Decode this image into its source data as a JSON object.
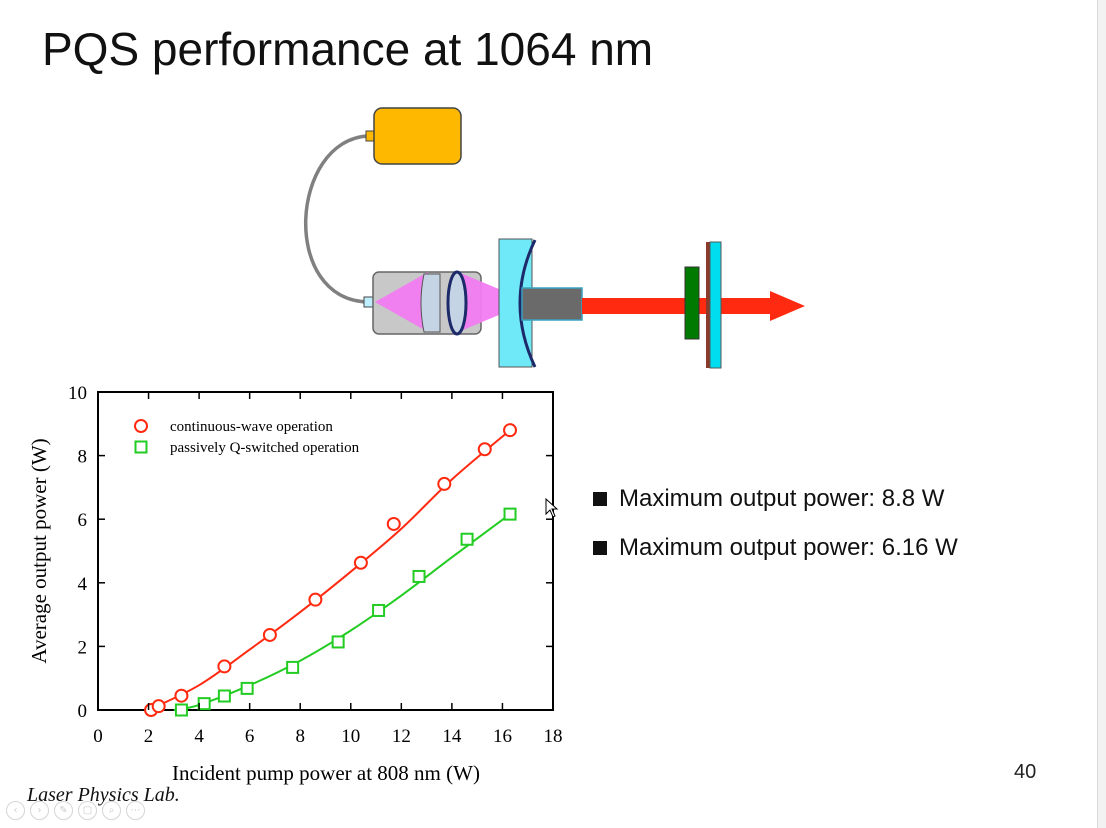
{
  "slide": {
    "title": "PQS performance at 1064 nm",
    "page_number": "40",
    "footer": "Laser Physics Lab."
  },
  "setup_diagram": {
    "components": [
      "pump-source-box",
      "fiber-cable",
      "coupling-optics-lens",
      "input-mirror",
      "gain-crystal",
      "output-beam-arrow",
      "saturable-absorber",
      "output-coupler"
    ],
    "colors": {
      "pump_source": "#FFB800",
      "pump_light": "#F27BF2",
      "mirror": "#6FE8F8",
      "crystal": "#6A6A6A",
      "beam": "#FF2A10",
      "absorber": "#007A00",
      "coupler": "#00DDEE"
    }
  },
  "bullets": [
    "Maximum output power: 8.8 W",
    "Maximum output power: 6.16 W"
  ],
  "toolbar": {
    "icons": [
      "prev-icon",
      "next-icon",
      "pen-icon",
      "slides-icon",
      "zoom-icon",
      "more-icon"
    ],
    "glyphs": [
      "‹",
      "›",
      "✎",
      "▢",
      "⌕",
      "⋯"
    ]
  },
  "chart_data": {
    "type": "scatter",
    "xlabel": "Incident pump power at 808 nm (W)",
    "ylabel": "Average output power (W)",
    "xlim": [
      0,
      18
    ],
    "ylim": [
      0,
      10
    ],
    "xticks": [
      0,
      2,
      4,
      6,
      8,
      10,
      12,
      14,
      16,
      18
    ],
    "yticks": [
      0,
      2,
      4,
      6,
      8,
      10
    ],
    "grid": false,
    "legend_position": "top-left",
    "series": [
      {
        "name": "continuous-wave operation",
        "marker": "circle",
        "color": "#FF2A10",
        "x": [
          2.1,
          2.4,
          3.3,
          5.0,
          6.8,
          8.6,
          10.4,
          11.7,
          13.7,
          15.3,
          16.3
        ],
        "y": [
          0.0,
          0.12,
          0.45,
          1.37,
          2.36,
          3.47,
          4.63,
          5.85,
          7.11,
          8.2,
          8.8
        ],
        "fit": {
          "x": [
            2.0,
            4,
            6,
            8,
            10,
            12,
            14,
            16.3
          ],
          "y": [
            0.0,
            0.78,
            1.9,
            3.08,
            4.35,
            5.7,
            7.25,
            8.8
          ]
        }
      },
      {
        "name": "passively Q-switched operation",
        "marker": "square",
        "color": "#22CC22",
        "x": [
          3.3,
          4.2,
          5.0,
          5.9,
          7.7,
          9.5,
          11.1,
          12.7,
          14.6,
          16.3
        ],
        "y": [
          0.0,
          0.2,
          0.44,
          0.68,
          1.34,
          2.14,
          3.13,
          4.2,
          5.37,
          6.16
        ],
        "fit": {
          "x": [
            3.0,
            4,
            6,
            8,
            10,
            12,
            14,
            16.3
          ],
          "y": [
            0.0,
            0.16,
            0.78,
            1.55,
            2.5,
            3.6,
            4.8,
            6.16
          ]
        }
      }
    ]
  }
}
